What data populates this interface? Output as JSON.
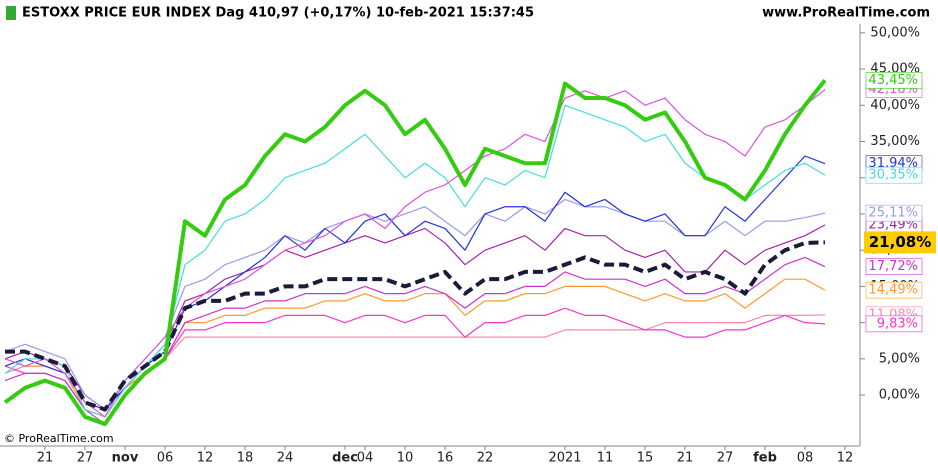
{
  "chart_data": {
    "type": "line",
    "title": "ESTOXX PRICE EUR INDEX Dag 410,97 (+0,17%) 10-feb-2021 15:37:45",
    "source": "www.ProRealTime.com",
    "copyright": "© ProRealTime.com",
    "categories": [
      null,
      null,
      "21",
      null,
      "27",
      null,
      "nov",
      null,
      "06",
      null,
      "12",
      null,
      "18",
      null,
      "24",
      null,
      null,
      "dec",
      "04",
      null,
      "10",
      null,
      "16",
      null,
      "22",
      null,
      null,
      null,
      "2021",
      null,
      "11",
      null,
      "15",
      null,
      "21",
      null,
      "27",
      null,
      "feb",
      null,
      "08",
      null,
      "12"
    ],
    "ylim": [
      -6.2,
      52.6
    ],
    "yticks": [
      {
        "value": 0,
        "label": "0,00%"
      },
      {
        "value": 5,
        "label": "5,00%"
      },
      {
        "value": 10,
        "label": "10,00%"
      },
      {
        "value": 15,
        "label": "15,00%"
      },
      {
        "value": 20,
        "label": "20,00%"
      },
      {
        "value": 25,
        "label": "25,00%"
      },
      {
        "value": 30,
        "label": "30,00%"
      },
      {
        "value": 35,
        "label": "35,00%"
      },
      {
        "value": 40,
        "label": "40,00%"
      },
      {
        "value": 45,
        "label": "45,00%"
      },
      {
        "value": 50,
        "label": "50,00%"
      }
    ],
    "series": [
      {
        "color": "#ff88aa",
        "end_label": "11,08%",
        "values": [
          3,
          4,
          4,
          3,
          -1,
          -2,
          1,
          3,
          5,
          8,
          8,
          8,
          8,
          8,
          8,
          8,
          8,
          8,
          8,
          8,
          8,
          8,
          8,
          8,
          8,
          8,
          8,
          8,
          9,
          9,
          9,
          9,
          9,
          10,
          10,
          10,
          10,
          10,
          11,
          11,
          11,
          11.08,
          null
        ]
      },
      {
        "color": "#ff33cc",
        "end_label": "9,83%",
        "values": [
          4,
          3,
          3,
          2,
          -2,
          -3,
          1,
          3,
          5,
          9,
          9,
          10,
          10,
          10,
          11,
          11,
          11,
          10,
          11,
          11,
          10,
          11,
          11,
          8,
          10,
          10,
          11,
          11,
          12,
          11,
          11,
          10,
          9,
          9,
          8,
          8,
          9,
          9,
          10,
          11,
          10,
          9.83,
          null
        ]
      },
      {
        "color": "#ff9933",
        "end_label": "14,49%",
        "values": [
          5,
          4,
          4,
          3,
          -2,
          -3,
          1,
          3,
          5,
          10,
          10,
          11,
          11,
          12,
          12,
          12,
          13,
          13,
          14,
          13,
          13,
          14,
          14,
          11,
          13,
          13,
          14,
          14,
          15,
          15,
          15,
          14,
          13,
          14,
          13,
          13,
          14,
          12,
          14,
          16,
          16,
          14.49,
          null
        ]
      },
      {
        "color": "#cc33cc",
        "end_label": "17,72%",
        "values": [
          2,
          3,
          3,
          2,
          -2,
          -4,
          0,
          3,
          5,
          10,
          11,
          12,
          12,
          13,
          13,
          14,
          14,
          14,
          15,
          14,
          14,
          15,
          14,
          12,
          14,
          14,
          15,
          15,
          17,
          16,
          16,
          16,
          15,
          16,
          14,
          14,
          15,
          14,
          16,
          18,
          19,
          17.72,
          null
        ]
      },
      {
        "color": "#aa22aa",
        "end_label": "23,49%",
        "values": [
          5,
          6,
          5,
          4,
          0,
          -2,
          1,
          4,
          7,
          13,
          14,
          16,
          17,
          18,
          20,
          19,
          20,
          21,
          22,
          21,
          22,
          23,
          21,
          18,
          20,
          21,
          22,
          20,
          23,
          22,
          22,
          20,
          19,
          20,
          17,
          17,
          20,
          18,
          20,
          21,
          22,
          23.49,
          null
        ]
      },
      {
        "color": "#9999ee",
        "end_label": "25,11%",
        "values": [
          6,
          7,
          6,
          5,
          0,
          -2,
          2,
          5,
          8,
          15,
          16,
          18,
          19,
          20,
          22,
          21,
          23,
          24,
          25,
          24,
          25,
          26,
          24,
          22,
          25,
          24,
          26,
          25,
          27,
          26,
          26,
          25,
          24,
          24,
          22,
          22,
          24,
          22,
          24,
          24,
          24.5,
          25.11,
          null
        ]
      },
      {
        "color": "#2233dd",
        "end_label": "31,94%",
        "values": [
          4,
          5,
          4,
          3,
          -1,
          -2,
          1,
          4,
          6,
          12,
          13,
          15,
          17,
          19,
          22,
          20,
          23,
          21,
          24,
          25,
          22,
          24,
          23,
          20,
          25,
          26,
          26,
          24,
          28,
          26,
          27,
          25,
          24,
          25,
          22,
          22,
          26,
          24,
          27,
          30,
          33,
          31.94,
          null
        ]
      },
      {
        "color": "#44dddd",
        "end_label": "30,35%",
        "values": [
          3,
          5,
          5,
          4,
          -2,
          -3,
          1,
          4,
          7,
          18,
          20,
          24,
          25,
          27,
          30,
          31,
          32,
          34,
          36,
          33,
          30,
          32,
          30,
          26,
          30,
          29,
          31,
          30,
          40,
          39,
          38,
          37,
          35,
          36,
          32,
          30,
          29,
          27,
          29,
          31,
          32,
          30.35,
          null
        ]
      },
      {
        "color": "#dd55dd",
        "end_label": "42,18%",
        "values": [
          5,
          4,
          5,
          3,
          -1,
          -3,
          2,
          5,
          8,
          12,
          14,
          15,
          16,
          18,
          20,
          21,
          22,
          24,
          25,
          23,
          26,
          28,
          29,
          31,
          33,
          34,
          36,
          35,
          41,
          42,
          41,
          42,
          40,
          41,
          38,
          36,
          35,
          33,
          37,
          38,
          40,
          42.18,
          null
        ]
      },
      {
        "color": "#1a1a3a",
        "end_label": "21,08%",
        "dash": true,
        "highlight": true,
        "values": [
          6,
          6,
          5,
          4,
          -1,
          -2,
          2,
          4,
          6,
          12,
          13,
          13,
          14,
          14,
          15,
          15,
          16,
          16,
          16,
          16,
          15,
          16,
          17,
          14,
          16,
          16,
          17,
          17,
          18,
          19,
          18,
          18,
          17,
          18,
          16,
          17,
          16,
          14,
          18,
          20,
          21,
          21.08,
          null
        ]
      },
      {
        "color": "#33cc11",
        "end_label": "43,45%",
        "width": 4,
        "values": [
          -1,
          1,
          2,
          1,
          -3,
          -4,
          0,
          3,
          5,
          24,
          22,
          27,
          29,
          33,
          36,
          35,
          37,
          40,
          42,
          40,
          36,
          38,
          34,
          29,
          34,
          33,
          32,
          32,
          43,
          41,
          41,
          40,
          38,
          39,
          35,
          30,
          29,
          27,
          31,
          36,
          40,
          43.45,
          null
        ]
      }
    ]
  }
}
